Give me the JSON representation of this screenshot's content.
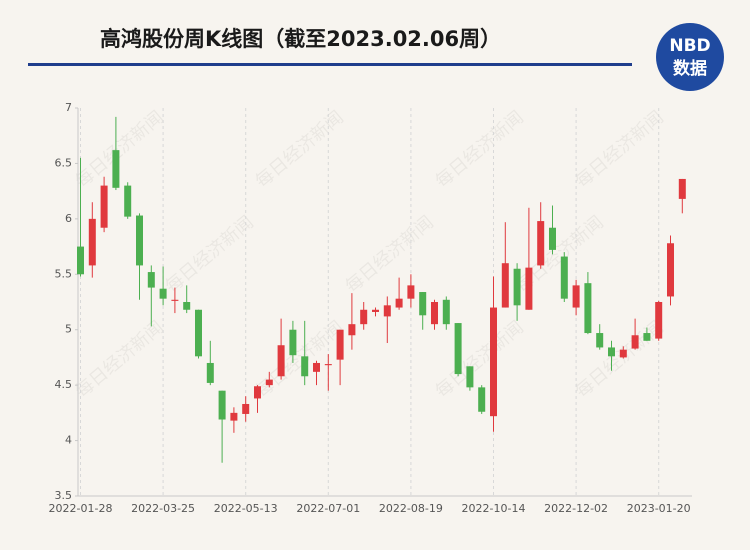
{
  "chart_data": {
    "type": "candlestick",
    "title": "高鸿股份周K线图（截至2023.02.06周）",
    "logo_top": "NBD",
    "logo_bottom": "数据",
    "watermark": "每日经济新闻",
    "categories": [
      "2022-01-28",
      null,
      null,
      null,
      null,
      null,
      null,
      "2022-03-25",
      null,
      null,
      null,
      null,
      null,
      null,
      "2022-05-13",
      null,
      null,
      null,
      null,
      null,
      null,
      "2022-07-01",
      null,
      null,
      null,
      null,
      null,
      null,
      "2022-08-19",
      null,
      null,
      null,
      null,
      null,
      null,
      "2022-10-14",
      null,
      null,
      null,
      null,
      null,
      null,
      "2022-12-02",
      null,
      null,
      null,
      null,
      null,
      null,
      "2023-01-20",
      null,
      null
    ],
    "open": [
      5.75,
      5.58,
      5.92,
      6.62,
      6.3,
      6.03,
      5.52,
      5.37,
      5.26,
      5.25,
      5.18,
      4.7,
      4.45,
      4.18,
      4.24,
      4.38,
      4.5,
      4.58,
      5.0,
      4.76,
      4.62,
      4.68,
      4.73,
      4.95,
      5.05,
      5.16,
      5.12,
      5.2,
      5.28,
      5.34,
      5.05,
      5.27,
      5.06,
      4.67,
      4.48,
      4.22,
      5.2,
      5.55,
      5.18,
      5.58,
      5.92,
      5.66,
      5.2,
      5.42,
      4.97,
      4.84,
      4.75,
      4.83,
      4.97,
      4.92,
      5.3,
      6.18
    ],
    "high": [
      6.55,
      6.15,
      6.38,
      6.92,
      6.33,
      6.05,
      5.58,
      5.57,
      5.38,
      5.4,
      5.18,
      4.9,
      4.45,
      4.3,
      4.4,
      4.5,
      4.62,
      5.1,
      5.08,
      5.08,
      4.72,
      4.78,
      5.0,
      5.33,
      5.25,
      5.2,
      5.3,
      5.47,
      5.5,
      5.34,
      5.27,
      5.3,
      5.06,
      4.67,
      4.5,
      5.48,
      5.97,
      5.6,
      6.1,
      6.15,
      6.12,
      5.7,
      5.45,
      5.52,
      5.05,
      4.9,
      4.85,
      5.1,
      5.02,
      5.26,
      5.85,
      6.36
    ],
    "low": [
      5.48,
      5.47,
      5.88,
      6.26,
      6.0,
      5.27,
      5.03,
      5.22,
      5.15,
      5.15,
      4.74,
      4.5,
      3.8,
      4.07,
      4.17,
      4.25,
      4.48,
      4.55,
      4.7,
      4.5,
      4.5,
      4.45,
      4.5,
      4.82,
      5.0,
      5.12,
      4.88,
      5.18,
      5.2,
      5.0,
      5.0,
      5.0,
      4.58,
      4.45,
      4.24,
      4.08,
      5.2,
      5.08,
      5.18,
      5.55,
      5.68,
      5.25,
      5.13,
      4.96,
      4.82,
      4.63,
      4.74,
      4.82,
      4.9,
      4.9,
      5.22,
      6.05
    ],
    "close": [
      5.5,
      6.0,
      6.3,
      6.28,
      6.02,
      5.58,
      5.38,
      5.28,
      5.27,
      5.18,
      4.76,
      4.52,
      4.19,
      4.25,
      4.33,
      4.49,
      4.55,
      4.86,
      4.77,
      4.58,
      4.7,
      4.69,
      5.0,
      5.05,
      5.18,
      5.18,
      5.22,
      5.28,
      5.4,
      5.13,
      5.25,
      5.05,
      4.6,
      4.48,
      4.26,
      5.2,
      5.6,
      5.22,
      5.56,
      5.98,
      5.72,
      5.28,
      5.4,
      4.97,
      4.84,
      4.76,
      4.82,
      4.95,
      4.9,
      5.25,
      5.78,
      6.36
    ],
    "up_color": "#e0393e",
    "down_color": "#4caf50",
    "ylim": [
      3.5,
      7
    ],
    "yticks": [
      3.5,
      4,
      4.5,
      5,
      5.5,
      6,
      6.5,
      7
    ],
    "grid": "x"
  }
}
